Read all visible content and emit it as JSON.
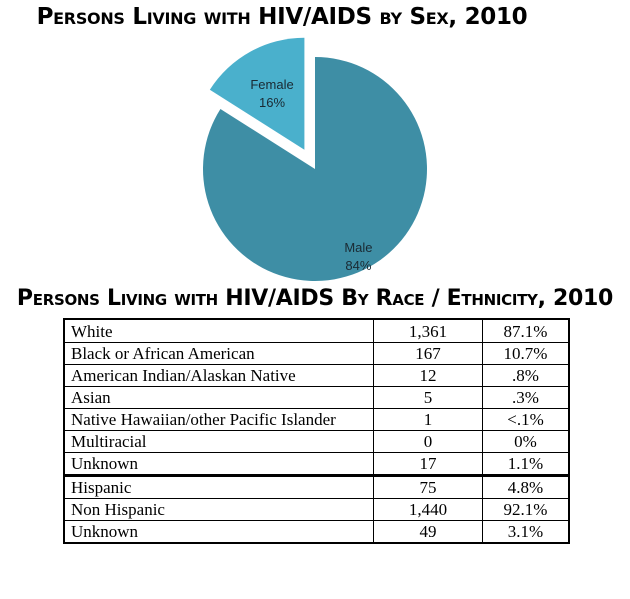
{
  "chart_data": [
    {
      "type": "pie",
      "title": "Persons Living with HIV/AIDS by Sex, 2010",
      "slices": [
        {
          "label": "Male",
          "value": 84,
          "display": "84%",
          "color": "#3e8ea5"
        },
        {
          "label": "Female",
          "value": 16,
          "display": "16%",
          "color": "#4ab0cc",
          "exploded": true
        }
      ]
    },
    {
      "type": "table",
      "title": "Persons Living with HIV/AIDS By Race / Ethnicity, 2010",
      "groups": [
        {
          "rows": [
            {
              "category": "White",
              "count": "1,361",
              "percent": "87.1%"
            },
            {
              "category": "Black or African American",
              "count": "167",
              "percent": "10.7%"
            },
            {
              "category": "American Indian/Alaskan Native",
              "count": "12",
              "percent": ".8%"
            },
            {
              "category": "Asian",
              "count": "5",
              "percent": ".3%"
            },
            {
              "category": "Native Hawaiian/other Pacific Islander",
              "count": "1",
              "percent": "<.1%"
            },
            {
              "category": "Multiracial",
              "count": "0",
              "percent": "0%"
            },
            {
              "category": "Unknown",
              "count": "17",
              "percent": "1.1%"
            }
          ]
        },
        {
          "rows": [
            {
              "category": "Hispanic",
              "count": "75",
              "percent": "4.8%"
            },
            {
              "category": "Non Hispanic",
              "count": "1,440",
              "percent": "92.1%"
            },
            {
              "category": "Unknown",
              "count": "49",
              "percent": "3.1%"
            }
          ]
        }
      ]
    }
  ]
}
